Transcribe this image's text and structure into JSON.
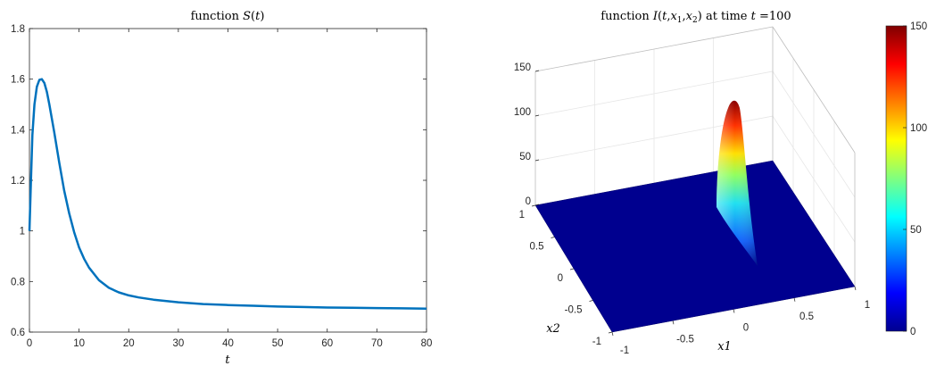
{
  "chart_data": [
    {
      "type": "line",
      "title": "function S(t)",
      "xlabel": "t",
      "ylabel": "",
      "xlim": [
        0,
        80
      ],
      "ylim": [
        0.6,
        1.8
      ],
      "x_ticks": [
        "0",
        "10",
        "20",
        "30",
        "40",
        "50",
        "60",
        "70",
        "80"
      ],
      "y_ticks": [
        "0.6",
        "0.8",
        "1",
        "1.2",
        "1.4",
        "1.6",
        "1.8"
      ],
      "grid": false,
      "line_color": "#0072BD",
      "series": [
        {
          "x": [
            0,
            0.3,
            0.6,
            1,
            1.5,
            2,
            2.5,
            3,
            3.5,
            4,
            5,
            6,
            7,
            8,
            9,
            10,
            11,
            12,
            14,
            16,
            18,
            20,
            22,
            25,
            30,
            35,
            40,
            45,
            50,
            55,
            60,
            65,
            70,
            75,
            80
          ],
          "y": [
            1.0,
            1.2,
            1.38,
            1.5,
            1.57,
            1.597,
            1.6,
            1.585,
            1.55,
            1.5,
            1.39,
            1.27,
            1.16,
            1.07,
            0.995,
            0.935,
            0.89,
            0.855,
            0.805,
            0.775,
            0.757,
            0.745,
            0.737,
            0.728,
            0.718,
            0.711,
            0.707,
            0.704,
            0.701,
            0.699,
            0.697,
            0.696,
            0.695,
            0.694,
            0.693
          ]
        }
      ]
    },
    {
      "type": "surface",
      "title": "function I(t, x1, x2) at time t = 100",
      "xlabel": "x1",
      "ylabel": "x2",
      "zlabel": "",
      "xlim": [
        -1,
        1
      ],
      "ylim": [
        -1,
        1
      ],
      "zlim": [
        0,
        150
      ],
      "x_ticks": [
        "-1",
        "-0.5",
        "0",
        "0.5",
        "1"
      ],
      "y_ticks": [
        "-1",
        "-0.5",
        "0",
        "0.5",
        "1"
      ],
      "z_ticks": [
        "0",
        "50",
        "100",
        "150"
      ],
      "colormap": "jet",
      "colorbar": {
        "min": 0,
        "max": 150,
        "ticks": [
          "0",
          "50",
          "100",
          "150"
        ]
      },
      "peak": {
        "value": 140
      }
    }
  ]
}
